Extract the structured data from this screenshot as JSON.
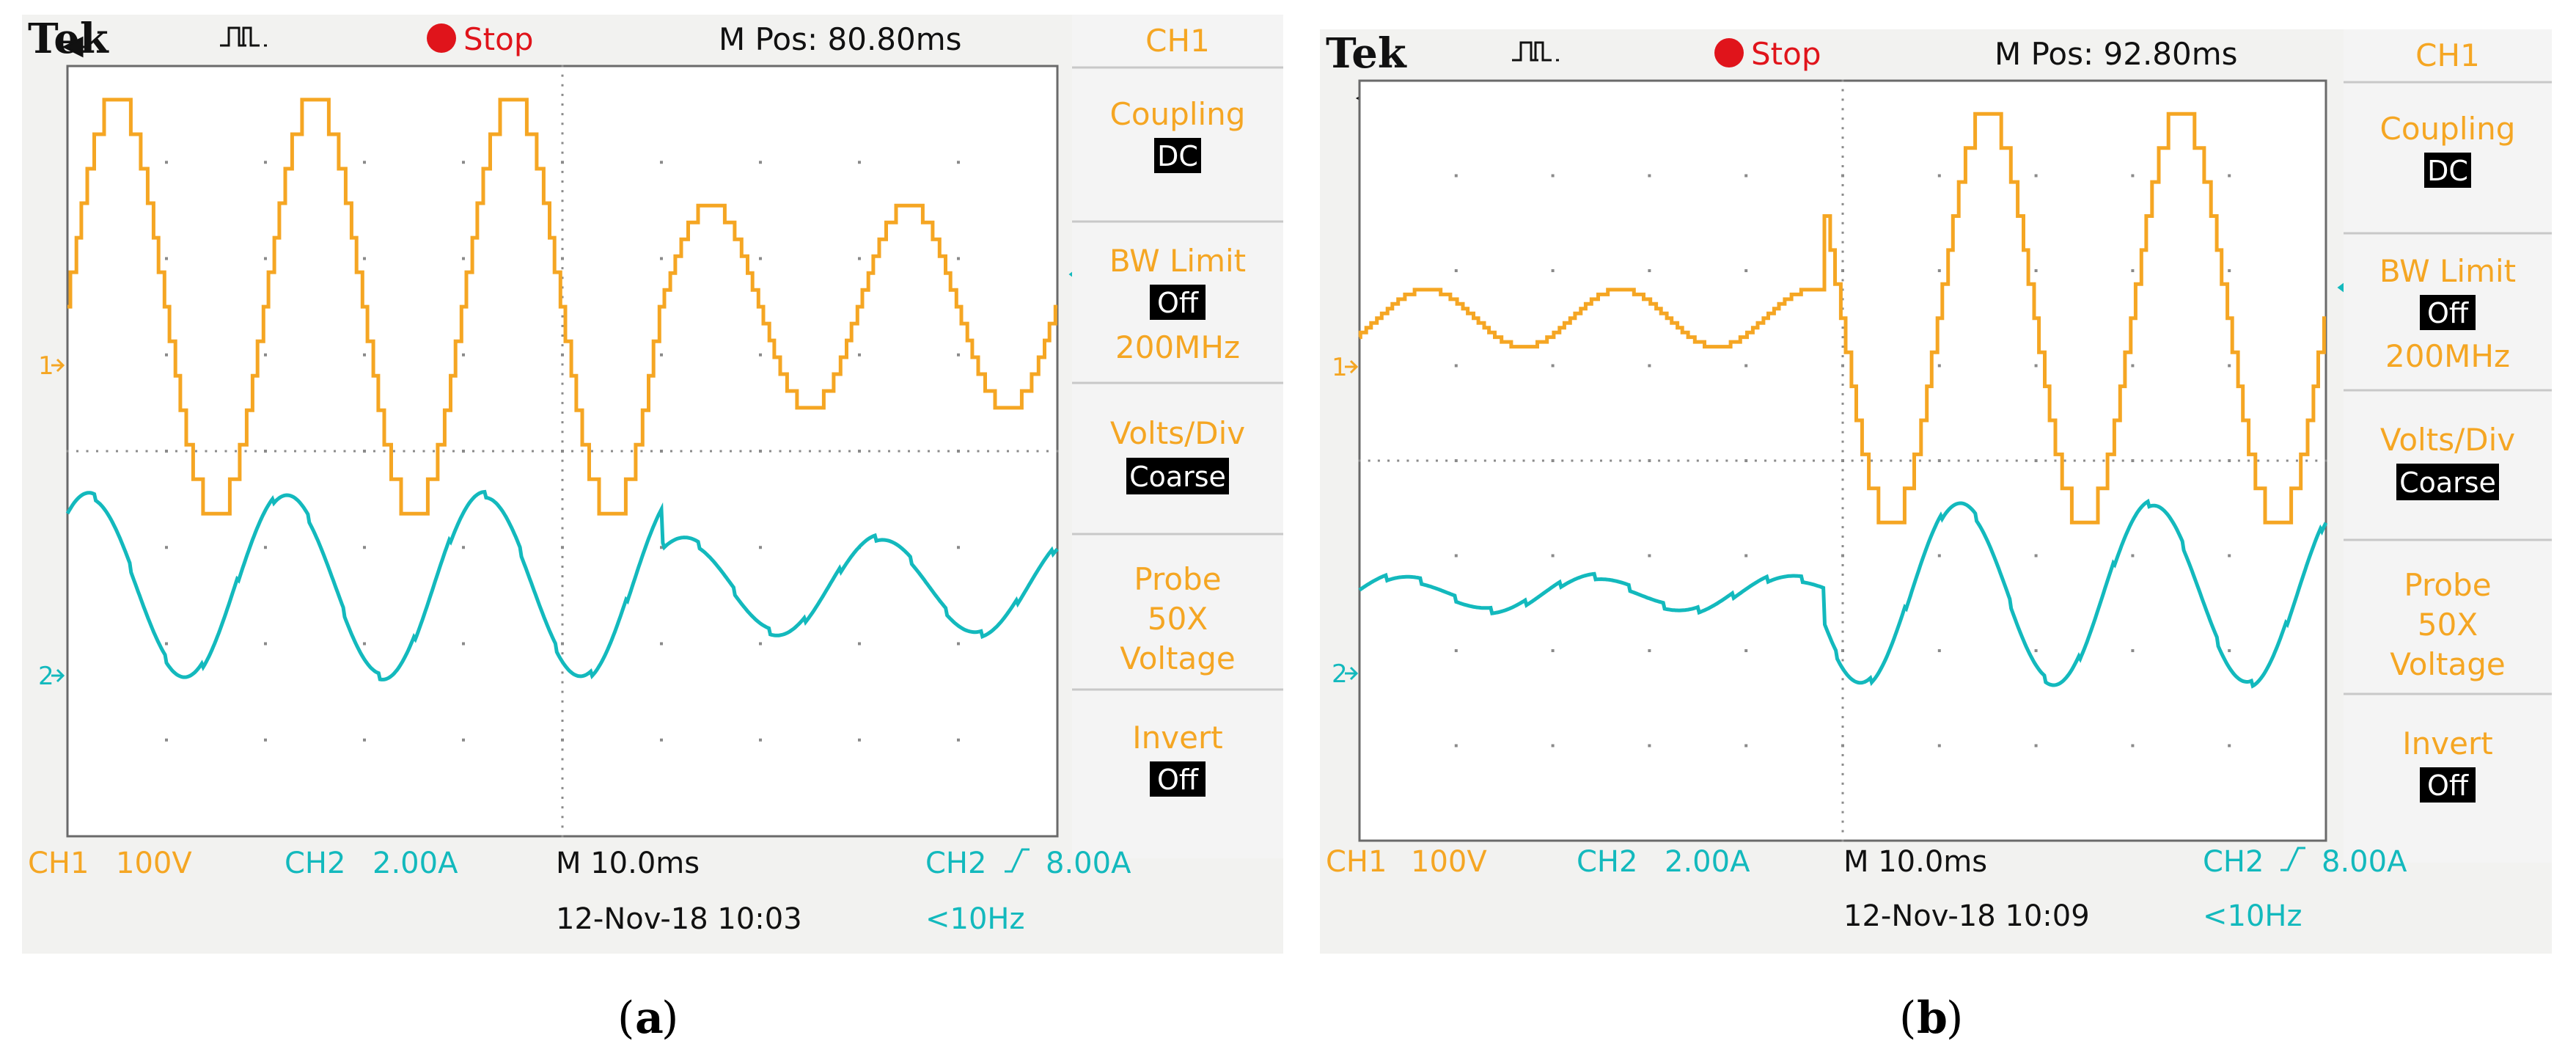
{
  "colors": {
    "ch1": "#f5a623",
    "ch2": "#13b9bd",
    "text": "#111111",
    "stop": "#e0141b"
  },
  "panels": [
    {
      "caption_open": "(",
      "caption_letter": "a",
      "caption_close": ")",
      "brand": "Tek",
      "trigger_icon": "pulse-icon",
      "run_state": "Stop",
      "mpos": "M Pos: 80.80ms",
      "menu": {
        "title": "CH1",
        "coupling": "Coupling",
        "coupling_value": "DC",
        "bw_limit": "BW Limit",
        "bw_value": "Off",
        "bw_freq": "200MHz",
        "volts_div": "Volts/Div",
        "volts_value": "Coarse",
        "probe": "Probe",
        "probe_gain": "50X",
        "probe_type": "Voltage",
        "invert": "Invert",
        "invert_value": "Off"
      },
      "status": {
        "ch1": "CH1",
        "ch1_scale": "100V",
        "ch2": "CH2",
        "ch2_scale": "2.00A",
        "timebase": "M 10.0ms",
        "trig_ch": "CH2",
        "trig_icon": "rising-edge-icon",
        "trig_level": "8.00A",
        "date": "12-Nov-18 10:03",
        "freq": "<10Hz"
      },
      "markers": {
        "ch1": "1",
        "ch2": "2",
        "trigger_pos": "trigger-position-icon",
        "trigger_level": "trigger-level-icon"
      }
    },
    {
      "caption_open": "(",
      "caption_letter": "b",
      "caption_close": ")",
      "brand": "Tek",
      "trigger_icon": "pulse-icon",
      "run_state": "Stop",
      "mpos": "M Pos: 92.80ms",
      "menu": {
        "title": "CH1",
        "coupling": "Coupling",
        "coupling_value": "DC",
        "bw_limit": "BW Limit",
        "bw_value": "Off",
        "bw_freq": "200MHz",
        "volts_div": "Volts/Div",
        "volts_value": "Coarse",
        "probe": "Probe",
        "probe_gain": "50X",
        "probe_type": "Voltage",
        "invert": "Invert",
        "invert_value": "Off"
      },
      "status": {
        "ch1": "CH1",
        "ch1_scale": "100V",
        "ch2": "CH2",
        "ch2_scale": "2.00A",
        "timebase": "M 10.0ms",
        "trig_ch": "CH2",
        "trig_icon": "rising-edge-icon",
        "trig_level": "8.00A",
        "date": "12-Nov-18 10:09",
        "freq": "<10Hz"
      },
      "markers": {
        "ch1": "1",
        "ch2": "2",
        "trigger_pos": "trigger-position-icon",
        "trigger_level": "trigger-level-icon"
      }
    }
  ],
  "chart_data": [
    {
      "type": "line",
      "xlim": [
        0,
        100
      ],
      "xunit": "ms",
      "ylim": [
        -4,
        4
      ],
      "yunit": "div",
      "series": [
        {
          "channel": "CH1",
          "style": "staircase",
          "ref_div": 1.5,
          "segments": [
            {
              "t0": 0,
              "t1": 20,
              "amp_div": 2.15,
              "period_ms": 20,
              "phase_ms": 0
            },
            {
              "t0": 20,
              "t1": 40,
              "amp_div": 2.15,
              "period_ms": 20,
              "phase_ms": 0
            },
            {
              "t0": 40,
              "t1": 60,
              "amp_div": 2.15,
              "period_ms": 20,
              "phase_ms": 0
            },
            {
              "t0": 60,
              "t1": 100,
              "amp_div": 1.05,
              "period_ms": 20,
              "phase_ms": 0
            }
          ]
        },
        {
          "channel": "CH2",
          "style": "smooth",
          "ref_div": -1.4,
          "segments": [
            {
              "t0": 0,
              "t1": 60,
              "amp_div": 0.95,
              "period_ms": 20,
              "phase_ms": -3
            },
            {
              "t0": 60,
              "t1": 100,
              "amp_div": 0.5,
              "period_ms": 20,
              "phase_ms": -3
            }
          ]
        }
      ]
    },
    {
      "type": "line",
      "xlim": [
        0,
        100
      ],
      "xunit": "ms",
      "ylim": [
        -4,
        4
      ],
      "yunit": "div",
      "series": [
        {
          "channel": "CH1",
          "style": "staircase",
          "ref_div": 1.5,
          "segments": [
            {
              "t0": 0,
              "t1": 48,
              "amp_div": 0.3,
              "period_ms": 20,
              "phase_ms": 2
            },
            {
              "t0": 48,
              "t1": 100,
              "amp_div": 2.15,
              "period_ms": 20,
              "phase_ms": 0
            }
          ]
        },
        {
          "channel": "CH2",
          "style": "smooth",
          "ref_div": -1.4,
          "segments": [
            {
              "t0": 0,
              "t1": 48,
              "amp_div": 0.18,
              "period_ms": 20,
              "phase_ms": -1
            },
            {
              "t0": 48,
              "t1": 100,
              "amp_div": 0.95,
              "period_ms": 20,
              "phase_ms": -3
            }
          ]
        }
      ]
    }
  ]
}
